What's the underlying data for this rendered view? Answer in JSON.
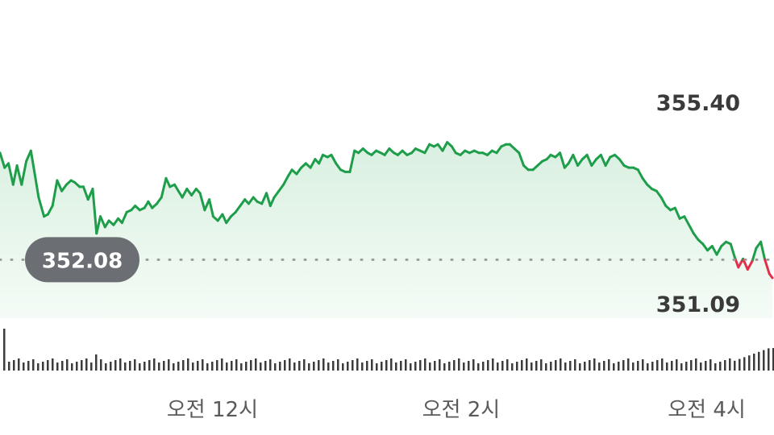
{
  "chart_data": {
    "type": "area",
    "title": "",
    "xlabel": "",
    "ylabel": "",
    "ylim": [
      350.7,
      356.4
    ],
    "reference_value": 352.08,
    "high_label": "355.40",
    "low_label": "351.09",
    "x_ticks": [
      {
        "t": 0.275,
        "label": "오전 12시"
      },
      {
        "t": 0.597,
        "label": "오전 2시"
      },
      {
        "t": 0.915,
        "label": "오전 4시"
      }
    ],
    "colors": {
      "up": "#1e9e4a",
      "down": "#e0314b",
      "fill": "#e3f4e8",
      "reference_line": "#9a9a9a",
      "badge": "#6b6e73",
      "volume": "#3c3c3c"
    },
    "grid": false,
    "legend": "none",
    "series": [
      {
        "values": [
          [
            0.0,
            354.6
          ],
          [
            0.006,
            354.25
          ],
          [
            0.011,
            354.35
          ],
          [
            0.017,
            353.85
          ],
          [
            0.022,
            354.3
          ],
          [
            0.028,
            353.85
          ],
          [
            0.034,
            354.4
          ],
          [
            0.04,
            354.65
          ],
          [
            0.045,
            354.1
          ],
          [
            0.05,
            353.55
          ],
          [
            0.057,
            353.1
          ],
          [
            0.062,
            353.15
          ],
          [
            0.068,
            353.35
          ],
          [
            0.074,
            353.95
          ],
          [
            0.08,
            353.7
          ],
          [
            0.086,
            353.85
          ],
          [
            0.092,
            353.95
          ],
          [
            0.097,
            353.9
          ],
          [
            0.103,
            353.8
          ],
          [
            0.108,
            353.8
          ],
          [
            0.114,
            353.5
          ],
          [
            0.12,
            353.75
          ],
          [
            0.125,
            352.7
          ],
          [
            0.13,
            353.1
          ],
          [
            0.136,
            352.85
          ],
          [
            0.141,
            353.0
          ],
          [
            0.147,
            352.9
          ],
          [
            0.153,
            353.05
          ],
          [
            0.158,
            352.95
          ],
          [
            0.164,
            353.2
          ],
          [
            0.17,
            353.25
          ],
          [
            0.175,
            353.35
          ],
          [
            0.181,
            353.25
          ],
          [
            0.187,
            353.3
          ],
          [
            0.192,
            353.45
          ],
          [
            0.197,
            353.3
          ],
          [
            0.203,
            353.4
          ],
          [
            0.209,
            353.55
          ],
          [
            0.215,
            354.0
          ],
          [
            0.22,
            353.8
          ],
          [
            0.226,
            353.85
          ],
          [
            0.231,
            353.7
          ],
          [
            0.236,
            353.55
          ],
          [
            0.242,
            353.75
          ],
          [
            0.248,
            353.6
          ],
          [
            0.254,
            353.75
          ],
          [
            0.259,
            353.65
          ],
          [
            0.265,
            353.25
          ],
          [
            0.271,
            353.5
          ],
          [
            0.276,
            353.1
          ],
          [
            0.282,
            353.0
          ],
          [
            0.288,
            353.15
          ],
          [
            0.293,
            352.95
          ],
          [
            0.299,
            353.1
          ],
          [
            0.305,
            353.2
          ],
          [
            0.311,
            353.35
          ],
          [
            0.317,
            353.5
          ],
          [
            0.322,
            353.4
          ],
          [
            0.328,
            353.55
          ],
          [
            0.333,
            353.45
          ],
          [
            0.339,
            353.4
          ],
          [
            0.345,
            353.65
          ],
          [
            0.35,
            353.35
          ],
          [
            0.355,
            353.55
          ],
          [
            0.361,
            353.7
          ],
          [
            0.367,
            353.85
          ],
          [
            0.373,
            354.05
          ],
          [
            0.378,
            354.2
          ],
          [
            0.384,
            354.1
          ],
          [
            0.39,
            354.25
          ],
          [
            0.396,
            354.35
          ],
          [
            0.402,
            354.25
          ],
          [
            0.408,
            354.45
          ],
          [
            0.413,
            354.35
          ],
          [
            0.418,
            354.55
          ],
          [
            0.424,
            354.5
          ],
          [
            0.429,
            354.55
          ],
          [
            0.435,
            354.35
          ],
          [
            0.441,
            354.2
          ],
          [
            0.447,
            354.15
          ],
          [
            0.453,
            354.15
          ],
          [
            0.459,
            354.65
          ],
          [
            0.464,
            354.6
          ],
          [
            0.47,
            354.7
          ],
          [
            0.476,
            354.6
          ],
          [
            0.481,
            354.55
          ],
          [
            0.487,
            354.65
          ],
          [
            0.493,
            354.6
          ],
          [
            0.498,
            354.55
          ],
          [
            0.504,
            354.7
          ],
          [
            0.51,
            354.6
          ],
          [
            0.515,
            354.55
          ],
          [
            0.521,
            354.65
          ],
          [
            0.527,
            354.55
          ],
          [
            0.533,
            354.6
          ],
          [
            0.538,
            354.7
          ],
          [
            0.544,
            354.65
          ],
          [
            0.55,
            354.6
          ],
          [
            0.556,
            354.8
          ],
          [
            0.562,
            354.75
          ],
          [
            0.567,
            354.8
          ],
          [
            0.573,
            354.65
          ],
          [
            0.579,
            354.85
          ],
          [
            0.585,
            354.75
          ],
          [
            0.59,
            354.6
          ],
          [
            0.596,
            354.55
          ],
          [
            0.602,
            354.65
          ],
          [
            0.608,
            354.6
          ],
          [
            0.614,
            354.65
          ],
          [
            0.62,
            354.6
          ],
          [
            0.625,
            354.6
          ],
          [
            0.631,
            354.55
          ],
          [
            0.637,
            354.65
          ],
          [
            0.643,
            354.6
          ],
          [
            0.649,
            354.75
          ],
          [
            0.655,
            354.8
          ],
          [
            0.66,
            354.8
          ],
          [
            0.666,
            354.7
          ],
          [
            0.672,
            354.6
          ],
          [
            0.678,
            354.3
          ],
          [
            0.684,
            354.2
          ],
          [
            0.69,
            354.2
          ],
          [
            0.696,
            354.3
          ],
          [
            0.702,
            354.4
          ],
          [
            0.708,
            354.45
          ],
          [
            0.713,
            354.55
          ],
          [
            0.719,
            354.5
          ],
          [
            0.725,
            354.6
          ],
          [
            0.731,
            354.25
          ],
          [
            0.736,
            354.35
          ],
          [
            0.742,
            354.55
          ],
          [
            0.748,
            354.3
          ],
          [
            0.754,
            354.45
          ],
          [
            0.76,
            354.55
          ],
          [
            0.766,
            354.3
          ],
          [
            0.772,
            354.45
          ],
          [
            0.778,
            354.55
          ],
          [
            0.784,
            354.3
          ],
          [
            0.79,
            354.5
          ],
          [
            0.796,
            354.55
          ],
          [
            0.802,
            354.45
          ],
          [
            0.808,
            354.3
          ],
          [
            0.814,
            354.25
          ],
          [
            0.82,
            354.25
          ],
          [
            0.826,
            354.2
          ],
          [
            0.832,
            354.0
          ],
          [
            0.838,
            353.85
          ],
          [
            0.844,
            353.75
          ],
          [
            0.85,
            353.7
          ],
          [
            0.856,
            353.55
          ],
          [
            0.862,
            353.35
          ],
          [
            0.868,
            353.25
          ],
          [
            0.874,
            353.3
          ],
          [
            0.88,
            353.05
          ],
          [
            0.886,
            353.1
          ],
          [
            0.892,
            352.9
          ],
          [
            0.898,
            352.7
          ],
          [
            0.904,
            352.55
          ],
          [
            0.91,
            352.45
          ],
          [
            0.916,
            352.3
          ],
          [
            0.922,
            352.4
          ],
          [
            0.928,
            352.2
          ],
          [
            0.934,
            352.4
          ],
          [
            0.94,
            352.5
          ],
          [
            0.946,
            352.45
          ],
          [
            0.951,
            352.15
          ],
          [
            0.956,
            351.9
          ],
          [
            0.962,
            352.1
          ],
          [
            0.968,
            351.85
          ],
          [
            0.974,
            352.05
          ],
          [
            0.979,
            352.35
          ],
          [
            0.985,
            352.5
          ],
          [
            0.99,
            352.1
          ],
          [
            0.996,
            351.75
          ],
          [
            1.0,
            351.65
          ]
        ]
      }
    ]
  }
}
